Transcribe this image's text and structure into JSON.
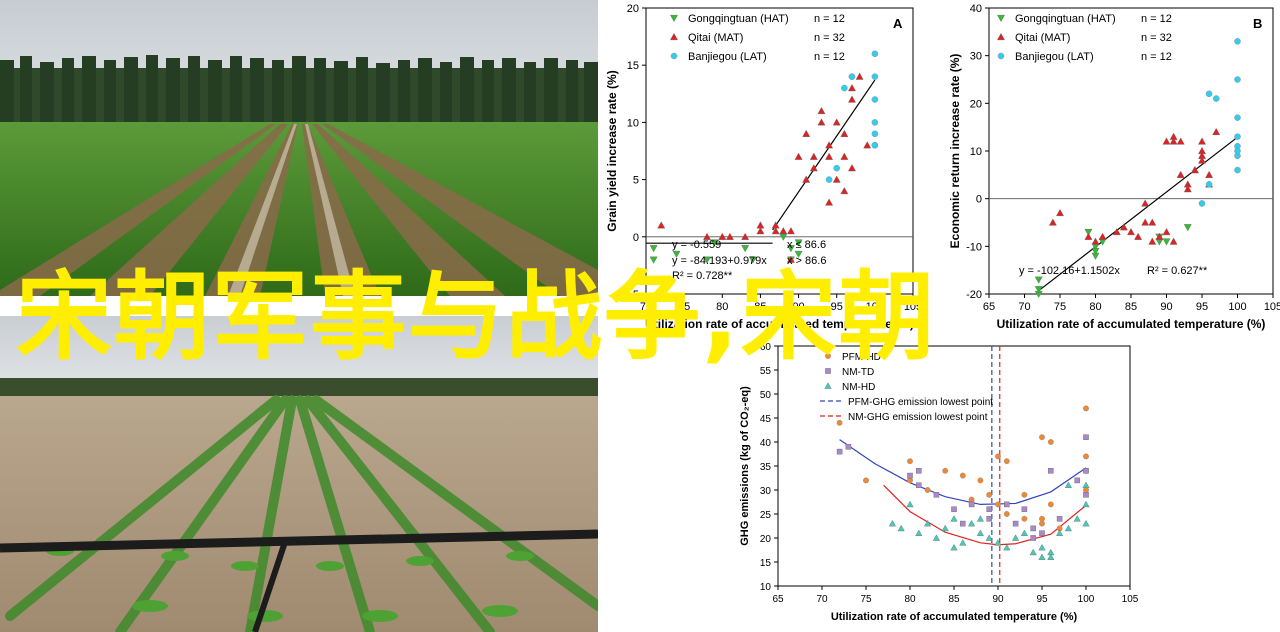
{
  "overlay": {
    "title": "宋朝军事与战争,宋朝",
    "color": "#ffee00"
  },
  "photos": [
    {
      "name": "crop-field-rows-with-poplar-trees"
    },
    {
      "name": "seedling-rows-with-drip-irrigation-pipe"
    }
  ],
  "chart_data": [
    {
      "type": "scatter",
      "panel_label": "A",
      "ylabel": "Grain yield increase rate (%)",
      "xlabel": "Utilization rate of accumulated temperature (%)",
      "xlim": [
        70,
        105
      ],
      "ylim": [
        -5,
        20
      ],
      "xticks": [
        70,
        75,
        80,
        85,
        90,
        95,
        100,
        105
      ],
      "yticks": [
        -5,
        0,
        5,
        10,
        15,
        20
      ],
      "baseline": 0,
      "legend": [
        {
          "name": "Gongqingtuan (HAT)",
          "count": "n = 12",
          "marker": "triangle-down",
          "color": "#33bb33"
        },
        {
          "name": "Qitai (MAT)",
          "count": "n = 32",
          "marker": "triangle-up",
          "color": "#dd2222"
        },
        {
          "name": "Banjiegou (LAT)",
          "count": "n = 12",
          "marker": "circle",
          "color": "#33ccee"
        }
      ],
      "annotations": [
        "y = -0.559",
        "x ≤ 86.6",
        "y = -84.193+0.979x",
        "x > 86.6",
        "R² = 0.728**"
      ],
      "fit": [
        {
          "x": [
            70,
            86.6
          ],
          "y": [
            -0.559,
            -0.559
          ]
        },
        {
          "x": [
            86.6,
            100
          ],
          "y": [
            0.6,
            13.7
          ]
        }
      ],
      "series": [
        {
          "name": "Gongqingtuan (HAT)",
          "marker": "triangle-down",
          "color": "#33bb33",
          "points": [
            [
              71,
              -1
            ],
            [
              71,
              -2
            ],
            [
              74,
              -1.5
            ],
            [
              78,
              -2
            ],
            [
              79,
              -0.5
            ],
            [
              83,
              -1
            ],
            [
              84,
              -2
            ],
            [
              89,
              -1
            ],
            [
              89,
              -2
            ],
            [
              90,
              -0.5
            ],
            [
              90,
              -1.5
            ],
            [
              88,
              0
            ]
          ]
        },
        {
          "name": "Qitai (MAT)",
          "marker": "triangle-up",
          "color": "#dd2222",
          "points": [
            [
              72,
              1
            ],
            [
              78,
              0
            ],
            [
              80,
              0
            ],
            [
              81,
              0
            ],
            [
              83,
              0
            ],
            [
              85,
              1
            ],
            [
              85,
              0.5
            ],
            [
              87,
              1
            ],
            [
              87,
              0.5
            ],
            [
              88,
              0.5
            ],
            [
              89,
              0.5
            ],
            [
              89,
              -2
            ],
            [
              90,
              7
            ],
            [
              91,
              5
            ],
            [
              92,
              6
            ],
            [
              93,
              11
            ],
            [
              93,
              10
            ],
            [
              94,
              8
            ],
            [
              94,
              7
            ],
            [
              95,
              10
            ],
            [
              96,
              9
            ],
            [
              97,
              13
            ],
            [
              97,
              12
            ],
            [
              98,
              14
            ],
            [
              97,
              6
            ],
            [
              96,
              7
            ],
            [
              95,
              5
            ],
            [
              94,
              3
            ],
            [
              92,
              7
            ],
            [
              91,
              9
            ],
            [
              96,
              4
            ],
            [
              99,
              8
            ]
          ]
        },
        {
          "name": "Banjiegou (LAT)",
          "marker": "circle",
          "color": "#33ccee",
          "points": [
            [
              94,
              5
            ],
            [
              95,
              6
            ],
            [
              96,
              13
            ],
            [
              97,
              14
            ],
            [
              97,
              14
            ],
            [
              100,
              16
            ],
            [
              100,
              14
            ],
            [
              100,
              12
            ],
            [
              100,
              10
            ],
            [
              100,
              9
            ],
            [
              100,
              8
            ],
            [
              100,
              8
            ]
          ]
        }
      ]
    },
    {
      "type": "scatter",
      "panel_label": "B",
      "ylabel": "Economic return increase rate (%)",
      "xlabel": "Utilization rate of accumulated temperature (%)",
      "xlim": [
        65,
        105
      ],
      "ylim": [
        -20,
        40
      ],
      "xticks": [
        65,
        70,
        75,
        80,
        85,
        90,
        95,
        100,
        105
      ],
      "yticks": [
        -20,
        -10,
        0,
        10,
        20,
        30,
        40
      ],
      "baseline": 0,
      "legend": [
        {
          "name": "Gongqingtuan (HAT)",
          "count": "n = 12",
          "marker": "triangle-down",
          "color": "#33bb33"
        },
        {
          "name": "Qitai (MAT)",
          "count": "n = 32",
          "marker": "triangle-up",
          "color": "#dd2222"
        },
        {
          "name": "Banjiegou (LAT)",
          "count": "n = 12",
          "marker": "circle",
          "color": "#33ccee"
        }
      ],
      "annotations": [
        "y = -102.16+1.1502x",
        "R² = 0.627**"
      ],
      "fit": [
        {
          "x": [
            72,
            100
          ],
          "y": [
            -19.3,
            12.9
          ]
        }
      ],
      "series": [
        {
          "name": "Gongqingtuan (HAT)",
          "marker": "triangle-down",
          "color": "#33bb33",
          "points": [
            [
              72,
              -17
            ],
            [
              72,
              -20
            ],
            [
              72,
              -19
            ],
            [
              79,
              -7
            ],
            [
              80,
              -10
            ],
            [
              80,
              -11
            ],
            [
              80,
              -12
            ],
            [
              81,
              -9
            ],
            [
              89,
              -8
            ],
            [
              89,
              -9
            ],
            [
              90,
              -9
            ],
            [
              93,
              -6
            ]
          ]
        },
        {
          "name": "Qitai (MAT)",
          "marker": "triangle-up",
          "color": "#dd2222",
          "points": [
            [
              74,
              -5
            ],
            [
              75,
              -3
            ],
            [
              79,
              -8
            ],
            [
              80,
              -9
            ],
            [
              81,
              -8
            ],
            [
              83,
              -7
            ],
            [
              84,
              -6
            ],
            [
              85,
              -7
            ],
            [
              86,
              -8
            ],
            [
              87,
              -5
            ],
            [
              88,
              -9
            ],
            [
              89,
              -8
            ],
            [
              87,
              -1
            ],
            [
              88,
              -5
            ],
            [
              90,
              -7
            ],
            [
              91,
              -9
            ],
            [
              90,
              12
            ],
            [
              91,
              12
            ],
            [
              91,
              13
            ],
            [
              92,
              12
            ],
            [
              92,
              5
            ],
            [
              93,
              3
            ],
            [
              93,
              2
            ],
            [
              94,
              6
            ],
            [
              95,
              8
            ],
            [
              95,
              10
            ],
            [
              95,
              9
            ],
            [
              96,
              5
            ],
            [
              96,
              3
            ],
            [
              97,
              14
            ],
            [
              95,
              12
            ],
            [
              94,
              6
            ]
          ]
        },
        {
          "name": "Banjiegou (LAT)",
          "marker": "circle",
          "color": "#33ccee",
          "points": [
            [
              95,
              -1
            ],
            [
              96,
              3
            ],
            [
              97,
              21
            ],
            [
              96,
              22
            ],
            [
              100,
              33
            ],
            [
              100,
              25
            ],
            [
              100,
              17
            ],
            [
              100,
              13
            ],
            [
              100,
              11
            ],
            [
              100,
              9
            ],
            [
              100,
              10
            ],
            [
              100,
              6
            ]
          ]
        }
      ]
    },
    {
      "type": "scatter",
      "ylabel": "GHG emissions (kg of CO₂-eq)",
      "xlabel": "Utilization rate of accumulated temperature (%)",
      "xlim": [
        65,
        105
      ],
      "ylim": [
        10,
        60
      ],
      "xticks": [
        65,
        70,
        75,
        80,
        85,
        90,
        95,
        100,
        105
      ],
      "yticks": [
        10,
        15,
        20,
        25,
        30,
        35,
        40,
        45,
        50,
        55,
        60
      ],
      "legend": [
        {
          "name": "PFM-HD",
          "marker": "circle",
          "color": "#ee8833"
        },
        {
          "name": "NM-TD",
          "marker": "square",
          "color": "#aa88cc"
        },
        {
          "name": "NM-HD",
          "marker": "triangle-up",
          "color": "#44ccbb"
        },
        {
          "name": "PFM-GHG emission lowest point",
          "line": "dashed",
          "color": "#3344bb"
        },
        {
          "name": "NM-GHG emission lowest point",
          "line": "dashed",
          "color": "#dd2222"
        }
      ],
      "lowest_points": [
        {
          "series": "PFM",
          "x": 89.3,
          "color": "#3344bb"
        },
        {
          "series": "NM",
          "x": 90.2,
          "color": "#dd2222"
        }
      ],
      "fit": [
        {
          "name": "PFM fit",
          "color": "#3344bb",
          "x": [
            72,
            76,
            80,
            84,
            88,
            92,
            96,
            100
          ],
          "y": [
            40.5,
            35.5,
            31.5,
            28.6,
            27.0,
            27.2,
            29.6,
            34.6
          ]
        },
        {
          "name": "NM fit",
          "color": "#dd2222",
          "x": [
            77,
            80,
            84,
            88,
            90,
            92,
            96,
            100
          ],
          "y": [
            31,
            25.5,
            21.2,
            19.0,
            18.6,
            18.8,
            20.8,
            26.8
          ]
        }
      ],
      "series": [
        {
          "name": "PFM-HD",
          "marker": "circle",
          "color": "#ee8833",
          "points": [
            [
              72,
              44
            ],
            [
              75,
              32
            ],
            [
              80,
              36
            ],
            [
              80,
              32
            ],
            [
              82,
              30
            ],
            [
              84,
              34
            ],
            [
              86,
              33
            ],
            [
              88,
              32
            ],
            [
              89,
              29
            ],
            [
              90,
              37
            ],
            [
              90,
              27
            ],
            [
              91,
              36
            ],
            [
              93,
              29
            ],
            [
              95,
              23
            ],
            [
              95,
              41
            ],
            [
              96,
              40
            ],
            [
              95,
              24
            ],
            [
              97,
              22
            ],
            [
              100,
              47
            ],
            [
              100,
              37
            ],
            [
              100,
              34
            ],
            [
              100,
              30
            ],
            [
              87,
              28
            ],
            [
              91,
              25
            ],
            [
              93,
              24
            ],
            [
              96,
              27
            ]
          ]
        },
        {
          "name": "NM-TD",
          "marker": "square",
          "color": "#aa88cc",
          "points": [
            [
              72,
              38
            ],
            [
              73,
              39
            ],
            [
              80,
              33
            ],
            [
              81,
              34
            ],
            [
              81,
              31
            ],
            [
              83,
              29
            ],
            [
              85,
              26
            ],
            [
              87,
              27
            ],
            [
              89,
              26
            ],
            [
              91,
              27
            ],
            [
              92,
              23
            ],
            [
              93,
              26
            ],
            [
              94,
              22
            ],
            [
              95,
              21
            ],
            [
              96,
              34
            ],
            [
              100,
              41
            ],
            [
              100,
              34
            ],
            [
              100,
              29
            ],
            [
              99,
              32
            ],
            [
              97,
              24
            ],
            [
              94,
              20
            ],
            [
              89,
              24
            ],
            [
              86,
              23
            ]
          ]
        },
        {
          "name": "NM-HD",
          "marker": "triangle-up",
          "color": "#44ccbb",
          "points": [
            [
              78,
              23
            ],
            [
              79,
              22
            ],
            [
              80,
              27
            ],
            [
              81,
              21
            ],
            [
              82,
              23
            ],
            [
              83,
              20
            ],
            [
              84,
              22
            ],
            [
              85,
              24
            ],
            [
              86,
              19
            ],
            [
              87,
              23
            ],
            [
              88,
              21
            ],
            [
              89,
              20
            ],
            [
              90,
              19
            ],
            [
              91,
              18
            ],
            [
              92,
              20
            ],
            [
              93,
              21
            ],
            [
              94,
              17
            ],
            [
              95,
              16
            ],
            [
              95,
              18
            ],
            [
              96,
              17
            ],
            [
              96,
              16
            ],
            [
              97,
              21
            ],
            [
              98,
              22
            ],
            [
              99,
              24
            ],
            [
              100,
              27
            ],
            [
              100,
              23
            ],
            [
              100,
              31
            ],
            [
              98,
              31
            ],
            [
              88,
              24
            ],
            [
              85,
              18
            ]
          ]
        }
      ]
    }
  ]
}
